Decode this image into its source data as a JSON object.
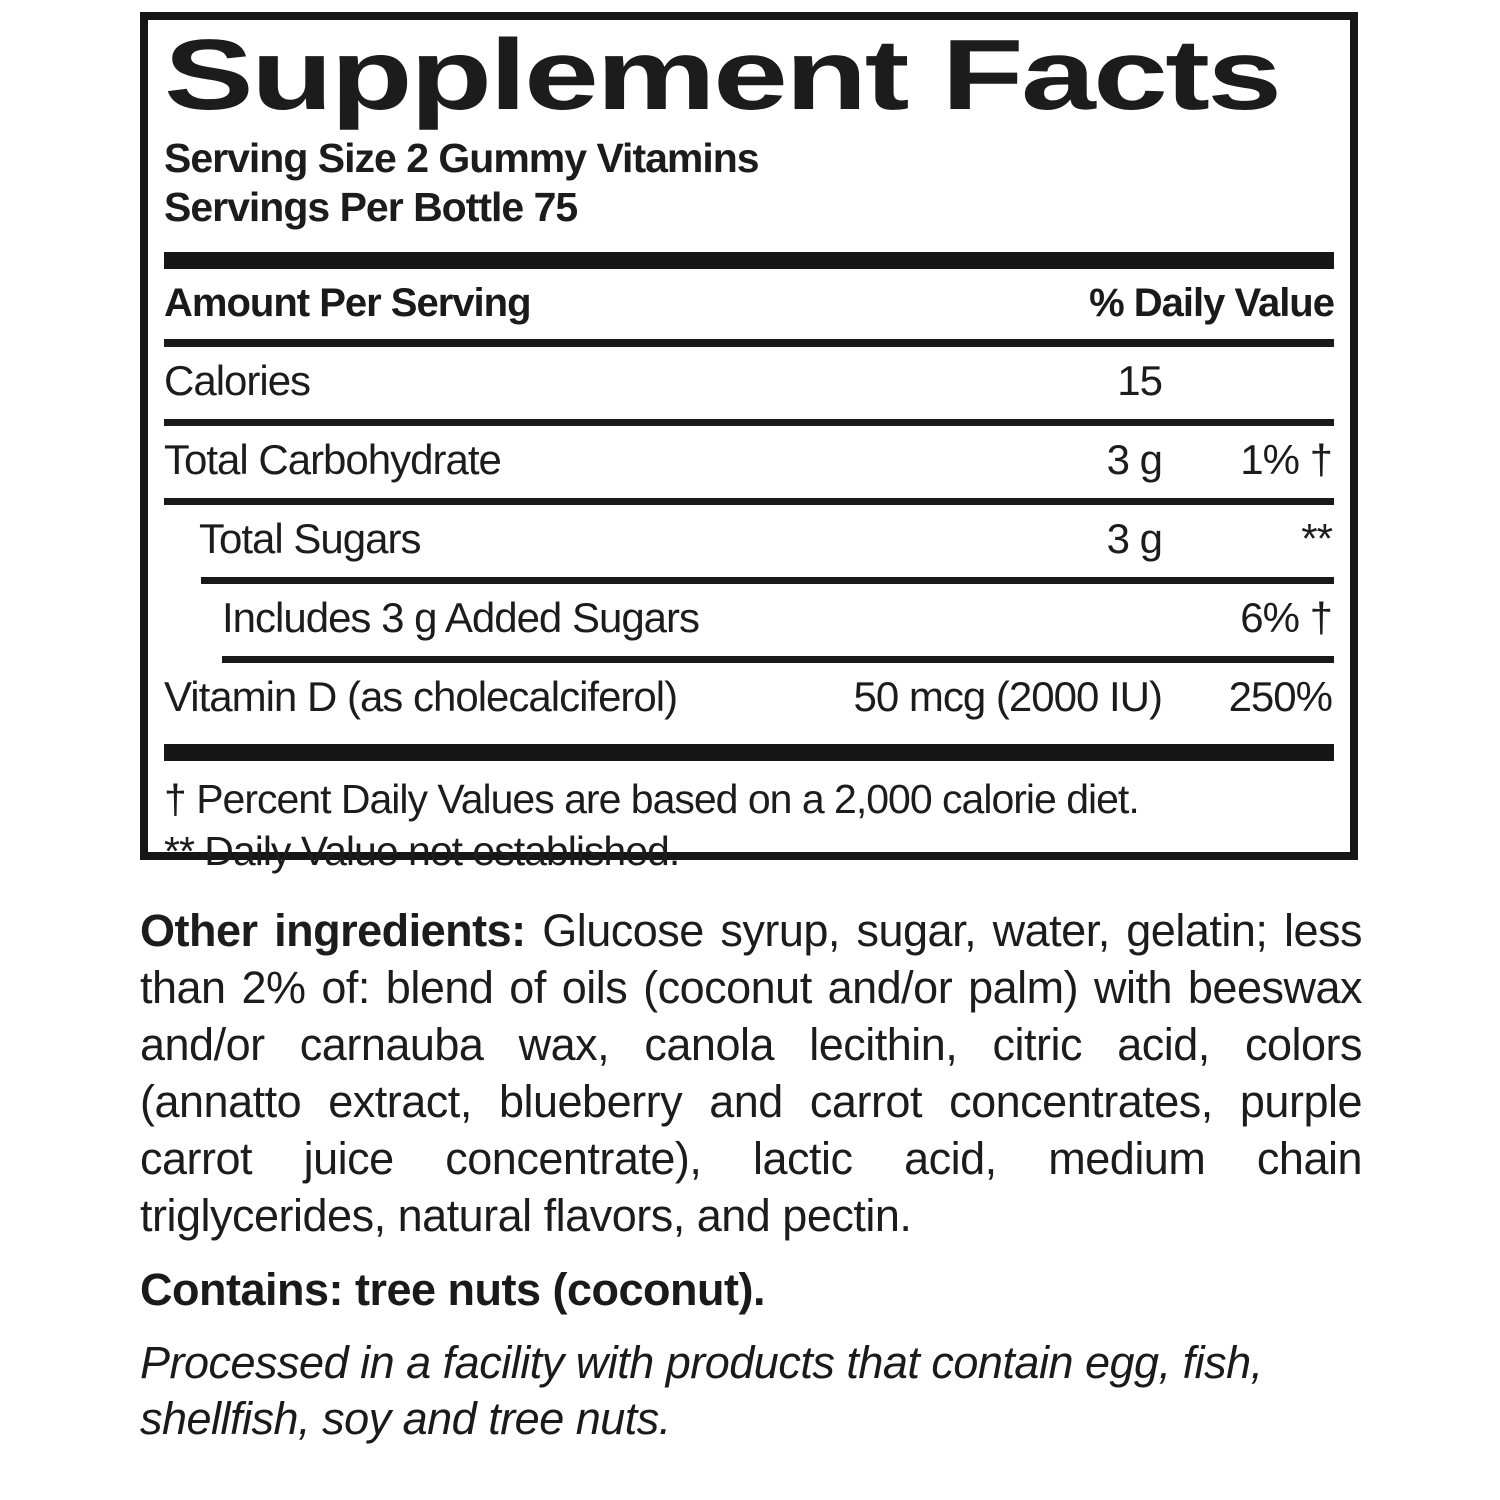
{
  "panel": {
    "title": "Supplement Facts",
    "serving_size": "Serving Size 2 Gummy Vitamins",
    "servings_per_bottle": "Servings Per Bottle 75",
    "columns": {
      "amount": "Amount Per Serving",
      "daily_value": "% Daily Value"
    },
    "rows": [
      {
        "name": "Calories",
        "amount": "15",
        "dv": ""
      },
      {
        "name": "Total Carbohydrate",
        "amount": "3 g",
        "dv": "1% †"
      },
      {
        "name": "Total Sugars",
        "amount": "3 g",
        "dv": "**"
      },
      {
        "name": "Includes 3 g Added Sugars",
        "amount": "",
        "dv": "6% †"
      },
      {
        "name": "Vitamin D (as cholecalciferol)",
        "amount": "50 mcg (2000 IU)",
        "dv": "250%"
      }
    ],
    "footnotes": {
      "daily_value": "† Percent Daily Values are based on a 2,000 calorie diet.",
      "not_established": "** Daily Value not established."
    }
  },
  "other_ingredients": {
    "label": "Other ingredients:",
    "text": " Glucose syrup, sugar, water, gelatin; less than 2% of: blend of oils (coconut and/or palm) with beeswax and/or carnauba wax, canola lecithin, citric acid, colors (annatto extract, blueberry and carrot concentrates, purple carrot juice concentrate), lactic acid, medium chain triglycerides, natural flavors, and pectin."
  },
  "contains": "Contains: tree nuts (coconut).",
  "allergen_notice": "Processed in a facility with products that contain egg, fish, shellfish, soy and tree nuts.",
  "colors": {
    "ink": "#1a1a1a",
    "background": "#ffffff"
  }
}
